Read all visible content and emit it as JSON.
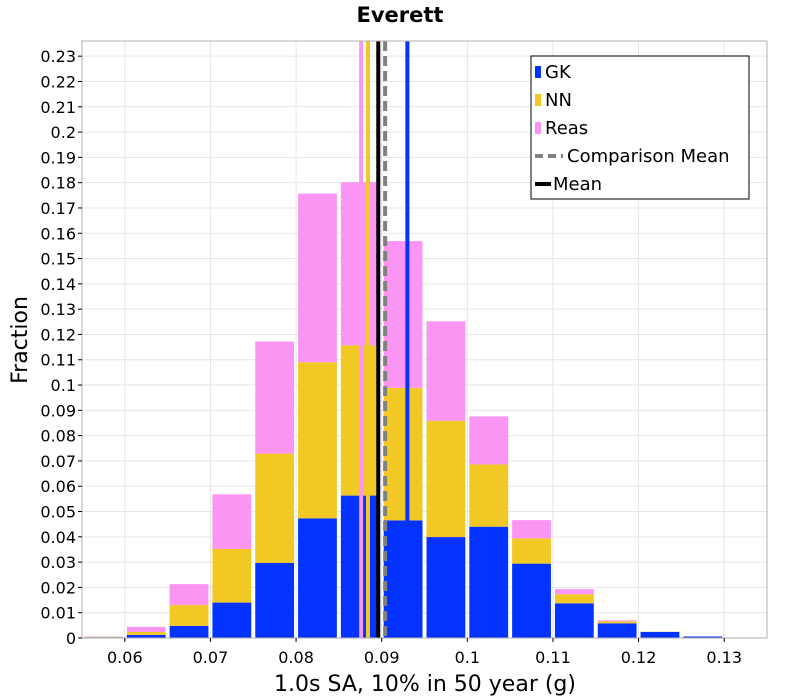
{
  "chart_data": {
    "type": "bar",
    "stacked": true,
    "title": "Everett",
    "xlabel": "1.0s SA, 10% in 50 year (g)",
    "ylabel": "Fraction",
    "xlim": [
      0.055,
      0.135
    ],
    "ylim": [
      0,
      0.236
    ],
    "x_ticks": [
      0.06,
      0.07,
      0.08,
      0.09,
      0.1,
      0.11,
      0.12,
      0.13
    ],
    "x_tick_labels": [
      "0.06",
      "0.07",
      "0.08",
      "0.09",
      "0.1",
      "0.11",
      "0.12",
      "0.13"
    ],
    "y_ticks": [
      0,
      0.01,
      0.02,
      0.03,
      0.04,
      0.05,
      0.06,
      0.07,
      0.08,
      0.09,
      0.1,
      0.11,
      0.12,
      0.13,
      0.14,
      0.15,
      0.16,
      0.17,
      0.18,
      0.19,
      0.2,
      0.21,
      0.22,
      0.23
    ],
    "y_tick_labels": [
      "0",
      "0.01",
      "0.02",
      "0.03",
      "0.04",
      "0.05",
      "0.06",
      "0.07",
      "0.08",
      "0.09",
      "0.1",
      "0.11",
      "0.12",
      "0.13",
      "0.14",
      "0.15",
      "0.16",
      "0.17",
      "0.18",
      "0.19",
      "0.2",
      "0.21",
      "0.22",
      "0.23"
    ],
    "grid": true,
    "legend_position": "top-right",
    "bin_width": 0.005,
    "bin_centers": [
      0.0575,
      0.0625,
      0.0675,
      0.0725,
      0.0775,
      0.0825,
      0.0875,
      0.0925,
      0.0975,
      0.1025,
      0.1075,
      0.1125,
      0.1175,
      0.1225,
      0.1275,
      0.1325
    ],
    "series": [
      {
        "name": "GK",
        "color": "#0433ff",
        "values": [
          0.0003,
          0.0012,
          0.0048,
          0.014,
          0.0297,
          0.0473,
          0.0563,
          0.0465,
          0.0399,
          0.044,
          0.0294,
          0.0137,
          0.0058,
          0.0024,
          0.0006,
          0.0002
        ]
      },
      {
        "name": "NN",
        "color": "#f2c824",
        "values": [
          0.0002,
          0.0012,
          0.0082,
          0.0212,
          0.0432,
          0.0617,
          0.0594,
          0.0524,
          0.046,
          0.0246,
          0.01,
          0.0036,
          0.0008,
          0.0001,
          0.0,
          0.0
        ]
      },
      {
        "name": "Reas",
        "color": "#fa95f4",
        "values": [
          0.0001,
          0.002,
          0.0083,
          0.0216,
          0.0443,
          0.0667,
          0.0645,
          0.058,
          0.0393,
          0.019,
          0.0072,
          0.002,
          0.0004,
          0.0,
          0.0,
          0.0
        ]
      }
    ],
    "vertical_lines": [
      {
        "name": "GK mean",
        "x": 0.093,
        "color": "#0433ff",
        "style": "solid"
      },
      {
        "name": "NN mean",
        "x": 0.0884,
        "color": "#f2c824",
        "style": "solid"
      },
      {
        "name": "Reas mean",
        "x": 0.0876,
        "color": "#fa95f4",
        "style": "solid"
      },
      {
        "name": "Comparison Mean",
        "x": 0.0904,
        "color": "#808080",
        "style": "dashed"
      },
      {
        "name": "Mean",
        "x": 0.0896,
        "color": "#000000",
        "style": "solid"
      }
    ],
    "legend": [
      {
        "label": "GK",
        "color": "#0433ff",
        "kind": "swatch"
      },
      {
        "label": "NN",
        "color": "#f2c824",
        "kind": "swatch"
      },
      {
        "label": "Reas",
        "color": "#fa95f4",
        "kind": "swatch"
      },
      {
        "label": "Comparison Mean",
        "color": "#808080",
        "kind": "dashed-line"
      },
      {
        "label": "Mean",
        "color": "#000000",
        "kind": "solid-line"
      }
    ]
  }
}
